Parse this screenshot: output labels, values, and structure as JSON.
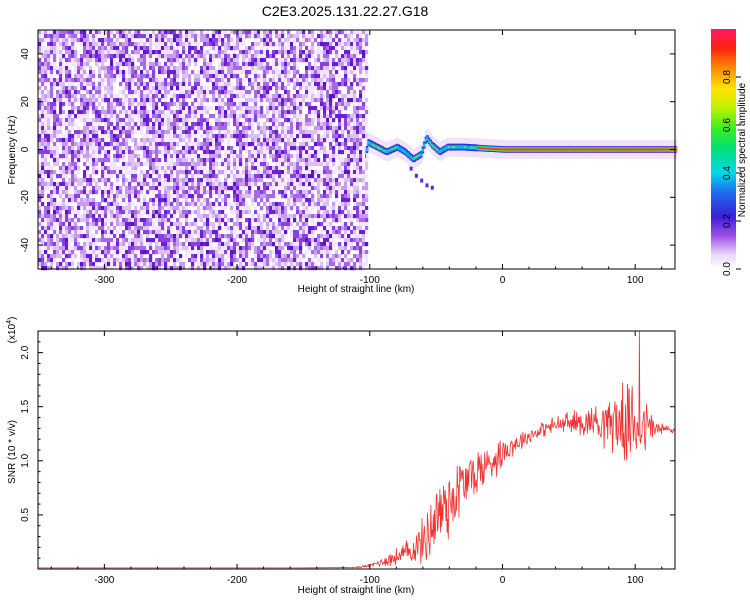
{
  "title": "C2E3.2025.131.22.27.G18",
  "chart_data": [
    {
      "type": "heatmap",
      "xlabel": "Height of straight line (km)",
      "ylabel": "Frequency (Hz)",
      "xlim": [
        -350,
        130
      ],
      "ylim": [
        -50,
        50
      ],
      "x_ticks": [
        -300,
        -200,
        -100,
        0,
        100
      ],
      "y_ticks": [
        -40,
        -20,
        0,
        20,
        40
      ],
      "colorbar": {
        "label": "Normalized spectral amplitude",
        "range": [
          0,
          1
        ],
        "ticks": [
          0.0,
          0.2,
          0.4,
          0.6,
          0.8
        ]
      },
      "regions": [
        {
          "x_range": [
            -350,
            -103
          ],
          "description": "broadband noise, amplitude ~0.05-0.15 spread over all frequencies"
        },
        {
          "x_range": [
            -103,
            -20
          ],
          "description": "signal ridge near 0 Hz with dips to -15 Hz, amplitude ~0.2-0.5"
        },
        {
          "x_range": [
            -20,
            130
          ],
          "description": "steady ridge at ~0 Hz, amplitude ~0.8-1.0"
        }
      ],
      "ridge_track": [
        {
          "x": -102,
          "y": 3
        },
        {
          "x": -95,
          "y": 1
        },
        {
          "x": -88,
          "y": -1
        },
        {
          "x": -80,
          "y": 1
        },
        {
          "x": -74,
          "y": -1
        },
        {
          "x": -68,
          "y": -4
        },
        {
          "x": -62,
          "y": -2
        },
        {
          "x": -58,
          "y": 5
        },
        {
          "x": -54,
          "y": 2
        },
        {
          "x": -48,
          "y": -1
        },
        {
          "x": -42,
          "y": 1
        },
        {
          "x": -30,
          "y": 1
        },
        {
          "x": 0,
          "y": 0
        },
        {
          "x": 50,
          "y": 0
        },
        {
          "x": 130,
          "y": 0
        }
      ]
    },
    {
      "type": "line",
      "xlabel": "Height of straight line (km)",
      "ylabel": "SNR (10 * v/v)",
      "y_multiplier": "(x10",
      "y_multiplier_exp": "4",
      "xlim": [
        -350,
        130
      ],
      "ylim": [
        0,
        22000
      ],
      "x_ticks": [
        -300,
        -200,
        -100,
        0,
        100
      ],
      "y_ticks": [
        {
          "value": 5000,
          "label": "0.5"
        },
        {
          "value": 10000,
          "label": "1.0"
        },
        {
          "value": 15000,
          "label": "1.5"
        },
        {
          "value": 20000,
          "label": "2.0"
        }
      ],
      "series": [
        {
          "color": "#ee3333",
          "x": [
            -350,
            -250,
            -150,
            -110,
            -100,
            -90,
            -80,
            -70,
            -60,
            -55,
            -50,
            -45,
            -40,
            -35,
            -30,
            -25,
            -20,
            -15,
            -10,
            -5,
            0,
            5,
            10,
            15,
            20,
            25,
            30,
            35,
            40,
            45,
            50,
            55,
            60,
            65,
            70,
            75,
            80,
            85,
            90,
            95,
            100,
            105,
            110,
            115,
            120,
            125,
            130
          ],
          "y": [
            100,
            100,
            100,
            150,
            300,
            700,
            1100,
            1600,
            2500,
            3600,
            4800,
            5600,
            6300,
            7000,
            7800,
            8400,
            8900,
            9300,
            9800,
            10300,
            10800,
            11300,
            11600,
            12000,
            12300,
            12600,
            12900,
            13100,
            13300,
            13400,
            13500,
            13500,
            13600,
            13600,
            13700,
            13600,
            13700,
            13600,
            13500,
            13400,
            13300,
            13200,
            13200,
            13000,
            12900,
            12900,
            12800
          ],
          "noise_amplitude": [
            0,
            0,
            0,
            80,
            200,
            600,
            1000,
            1500,
            2500,
            3500,
            4500,
            4500,
            4500,
            4000,
            3500,
            3000,
            2800,
            2500,
            2300,
            2000,
            1700,
            1400,
            1200,
            1000,
            900,
            800,
            800,
            900,
            1000,
            1200,
            1300,
            1400,
            1500,
            1700,
            2000,
            2500,
            3000,
            3500,
            4000,
            4200,
            4500,
            3500,
            2500,
            1200,
            800,
            600,
            500
          ],
          "peak": {
            "x": 103,
            "y": 22000
          }
        }
      ]
    }
  ]
}
